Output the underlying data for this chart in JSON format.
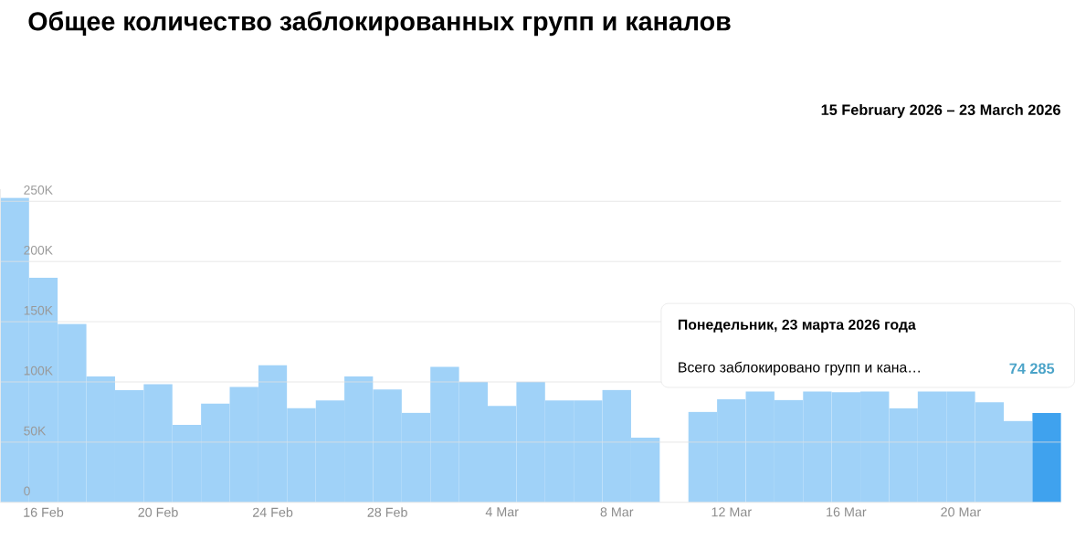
{
  "chart_data": {
    "type": "bar",
    "title": "Общее количество заблокированных групп и каналов",
    "subtitle": "15 February 2026 – 23 March 2026",
    "categories": [
      null,
      "16 Feb",
      null,
      null,
      null,
      "20 Feb",
      null,
      null,
      null,
      "24 Feb",
      null,
      null,
      null,
      "28 Feb",
      null,
      null,
      null,
      "4 Mar",
      null,
      null,
      null,
      "8 Mar",
      null,
      null,
      null,
      "12 Mar",
      null,
      null,
      null,
      "16 Mar",
      null,
      null,
      null,
      "20 Mar",
      null,
      null,
      null
    ],
    "values": [
      252800,
      186500,
      148200,
      104600,
      93100,
      98100,
      64300,
      82100,
      95900,
      113900,
      78400,
      84600,
      104600,
      93800,
      74300,
      112600,
      100100,
      80100,
      100100,
      84600,
      84600,
      93400,
      53800,
      null,
      75100,
      85600,
      92100,
      85100,
      92000,
      91400,
      92000,
      78100,
      92000,
      92000,
      83100,
      67600,
      74285
    ],
    "colors": [
      "#a0d2f8",
      "#a0d2f8",
      "#a0d2f8",
      "#a0d2f8",
      "#a0d2f8",
      "#a0d2f8",
      "#a0d2f8",
      "#a0d2f8",
      "#a0d2f8",
      "#a0d2f8",
      "#a0d2f8",
      "#a0d2f8",
      "#a0d2f8",
      "#a0d2f8",
      "#a0d2f8",
      "#a0d2f8",
      "#a0d2f8",
      "#a0d2f8",
      "#a0d2f8",
      "#a0d2f8",
      "#a0d2f8",
      "#a0d2f8",
      "#a0d2f8",
      "#a0d2f8",
      "#a0d2f8",
      "#a0d2f8",
      "#a0d2f8",
      "#a0d2f8",
      "#a0d2f8",
      "#a0d2f8",
      "#a0d2f8",
      "#a0d2f8",
      "#a0d2f8",
      "#a0d2f8",
      "#a0d2f8",
      "#a0d2f8",
      "#3fa2ee"
    ],
    "value_labels": [
      null,
      null,
      null,
      null,
      null,
      null,
      null,
      null,
      null,
      null,
      null,
      null,
      null,
      null,
      null,
      null,
      null,
      null,
      null,
      null,
      null,
      null,
      null,
      null,
      null,
      null,
      null,
      null,
      null,
      null,
      null,
      null,
      null,
      null,
      null,
      null,
      "74 285"
    ],
    "annotations": [
      "Понедельник, 23 марта 2026 года",
      "Всего заблокировано групп и кана…"
    ],
    "ylim": [
      0,
      260000
    ],
    "yticks": [
      0,
      {
        "value": 50000,
        "label": "50K"
      },
      {
        "value": 100000,
        "label": "100K"
      },
      {
        "value": 150000,
        "label": "150K"
      },
      {
        "value": 200000,
        "label": "200K"
      },
      {
        "value": 250000,
        "label": "250K"
      }
    ],
    "grid": "y"
  }
}
